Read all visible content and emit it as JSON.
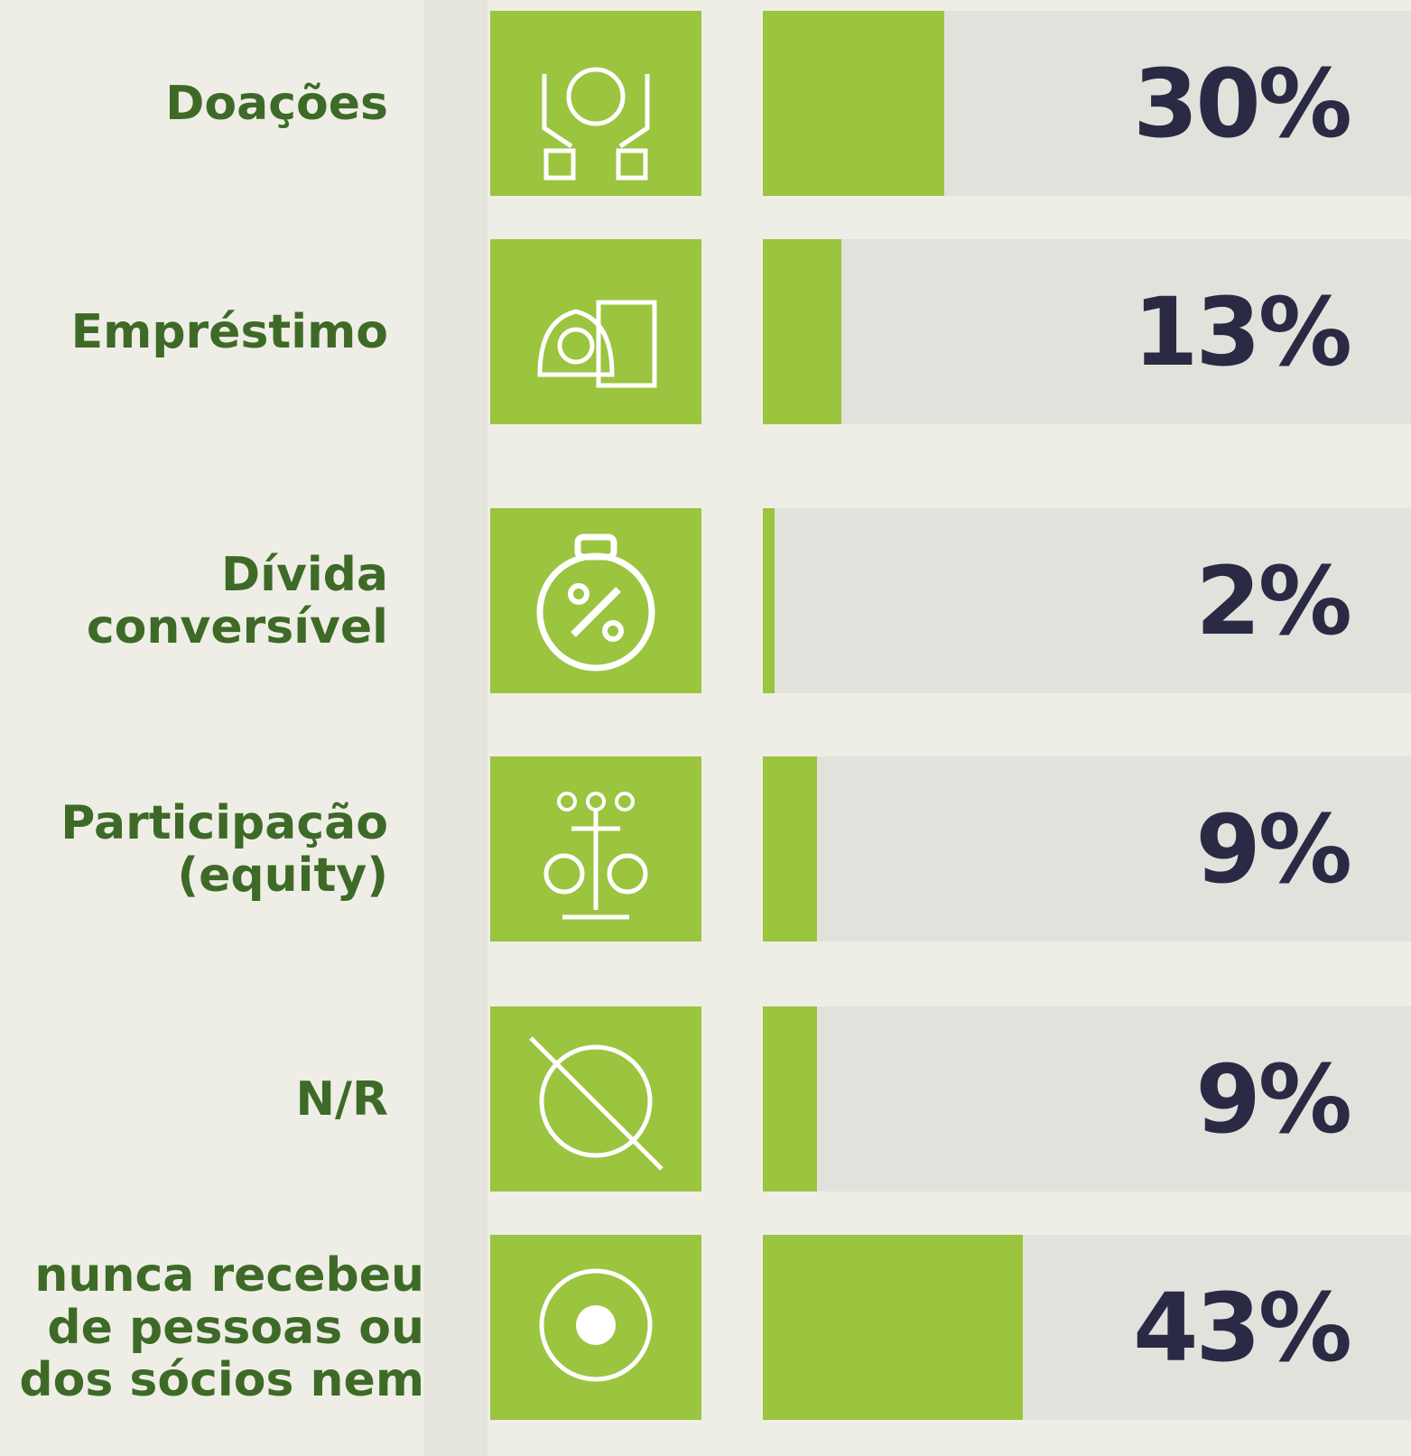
{
  "chart_data": {
    "type": "bar",
    "orientation": "horizontal",
    "categories": [
      "Doações",
      "Empréstimo",
      "Dívida\nconversível",
      "Participação\n(equity)",
      "N/R",
      "nunca recebeu\nde pessoas ou\ndos sócios nem"
    ],
    "values": [
      30,
      13,
      2,
      9,
      9,
      43
    ],
    "value_labels": [
      "30%",
      "13%",
      "2%",
      "9%",
      "9%",
      "43%"
    ],
    "color": "#9bc43f"
  }
}
